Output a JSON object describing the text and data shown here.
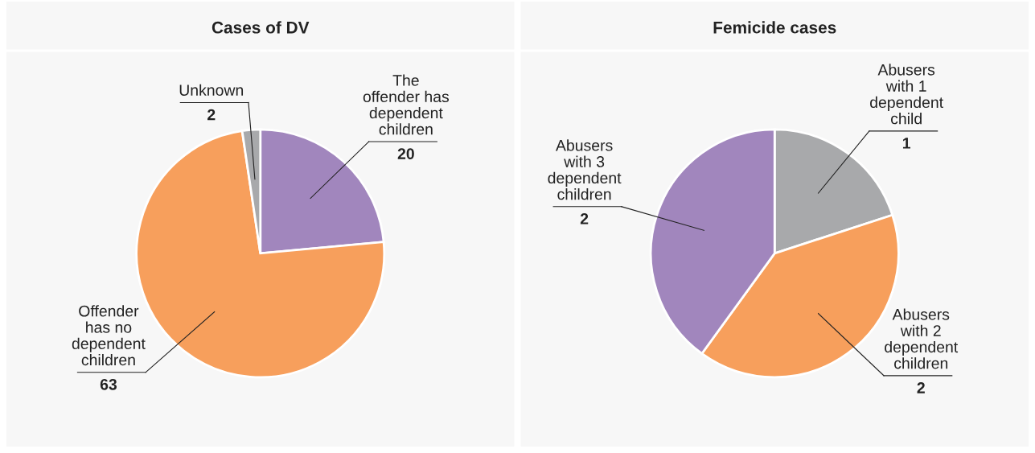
{
  "chart_data": [
    {
      "type": "pie",
      "title": "Cases of DV",
      "categories": [
        "The\noffender has\ndependent\nchildren",
        "Offender\nhas no\ndependent\nchildren",
        "Unknown"
      ],
      "values": [
        20,
        63,
        2
      ],
      "colors": [
        "#a186bd",
        "#f79f5c",
        "#a8a9ab"
      ],
      "data_labels": true
    },
    {
      "type": "pie",
      "title": "Femicide cases",
      "categories": [
        "Abusers\nwith 1\ndependent\nchild",
        "Abusers\nwith 2\ndependent\nchildren",
        "Abusers\nwith 3\ndependent\nchildren"
      ],
      "values": [
        1,
        2,
        2
      ],
      "colors": [
        "#a8a9ab",
        "#f79f5c",
        "#a186bd"
      ],
      "data_labels": true
    }
  ]
}
